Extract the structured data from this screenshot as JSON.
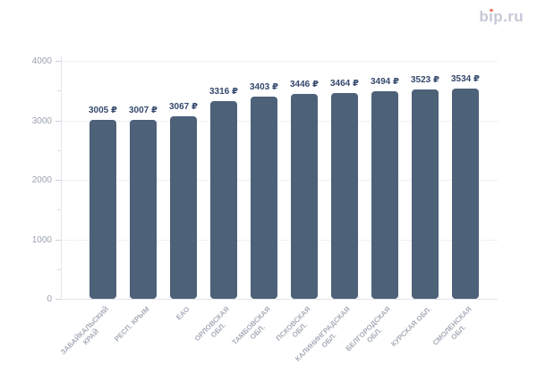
{
  "logo": {
    "text": "bip.ru",
    "color": "#c5c9d6",
    "dot_color": "#ed7c5c"
  },
  "chart_data": {
    "type": "bar",
    "title": "",
    "xlabel": "",
    "ylabel": "",
    "categories": [
      "ЗАБАЙКАЛЬСКИЙ\nКРАЙ",
      "РЕСП. КРЫМ",
      "ЕАО",
      "ОРЛОВСКАЯ\nОБЛ.",
      "ТАМБОВСКАЯ\nОБЛ.",
      "ПСКОВСКАЯ\nОБЛ.",
      "КАЛИНИНГРАДСКАЯ\nОБЛ.",
      "БЕЛГОРОДСКАЯ\nОБЛ.",
      "КУРСКАЯ ОБЛ.",
      "СМОЛЕНСКАЯ\nОБЛ."
    ],
    "values": [
      3005,
      3007,
      3067,
      3316,
      3403,
      3446,
      3464,
      3494,
      3523,
      3534
    ],
    "value_labels": [
      "3005 ₽",
      "3007 ₽",
      "3067 ₽",
      "3316 ₽",
      "3403 ₽",
      "3446 ₽",
      "3464 ₽",
      "3494 ₽",
      "3523 ₽",
      "3534 ₽"
    ],
    "value_suffix": " ₽",
    "ylim": [
      0,
      4000
    ],
    "yticks": [
      0,
      1000,
      2000,
      3000,
      4000
    ],
    "minor_yticks": [
      500,
      1500,
      2500,
      3500
    ],
    "grid": true,
    "legend": false,
    "bar_color": "#4d6179",
    "value_label_color": "#35496d",
    "x_label_color": "#a7adb9",
    "y_label_color": "#9ba2af",
    "gridline_color": "#dfe3e9",
    "axis_color": "#e2e5eb"
  }
}
